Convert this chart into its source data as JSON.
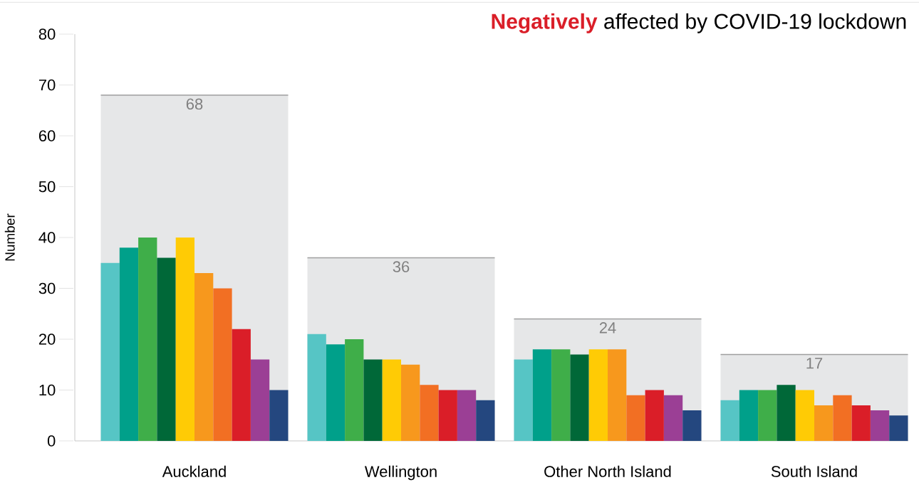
{
  "chart_data": {
    "type": "bar",
    "title": "**Negatively** affected by COVID-19 lockdown",
    "ylabel": "Number",
    "categories": [
      "Auckland",
      "Wellington",
      "Other North Island",
      "South Island"
    ],
    "ylim": [
      0,
      80
    ],
    "yticks": [
      0,
      10,
      20,
      30,
      40,
      50,
      60,
      70,
      80
    ],
    "grid": false,
    "series": [
      {
        "color": "#e6e7e8",
        "values": [
          68,
          36,
          24,
          17
        ],
        "value_labels": [
          "68",
          "36",
          "24",
          "17"
        ]
      },
      {
        "color": "#56c5c5",
        "values": [
          35,
          21,
          16,
          8
        ]
      },
      {
        "color": "#00a08a",
        "values": [
          38,
          19,
          18,
          10
        ]
      },
      {
        "color": "#3fae49",
        "values": [
          40,
          20,
          18,
          10
        ]
      },
      {
        "color": "#006838",
        "values": [
          36,
          16,
          17,
          11
        ]
      },
      {
        "color": "#ffcb05",
        "values": [
          40,
          16,
          18,
          10
        ]
      },
      {
        "color": "#f7981d",
        "values": [
          33,
          15,
          18,
          7
        ]
      },
      {
        "color": "#f26f23",
        "values": [
          30,
          11,
          9,
          9
        ]
      },
      {
        "color": "#da1e28",
        "values": [
          22,
          10,
          10,
          7
        ]
      },
      {
        "color": "#9b3f95",
        "values": [
          16,
          10,
          9,
          6
        ]
      },
      {
        "color": "#24477f",
        "values": [
          10,
          8,
          6,
          5
        ]
      }
    ]
  }
}
